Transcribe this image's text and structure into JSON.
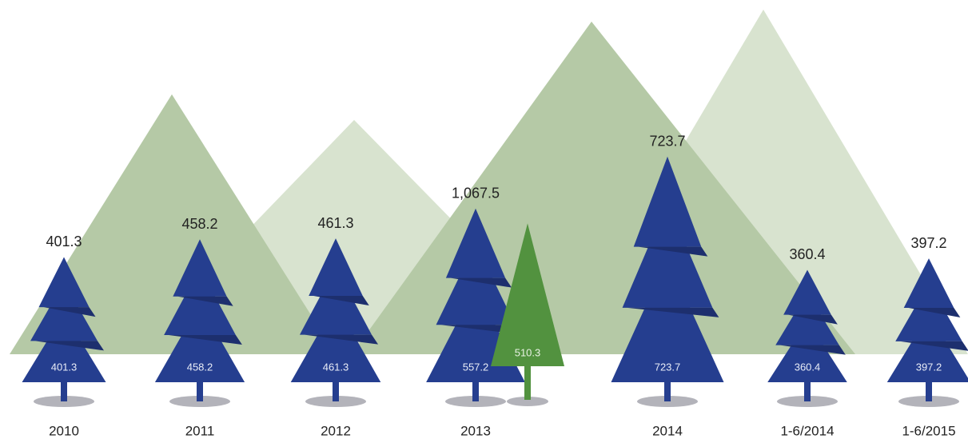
{
  "chart_data": {
    "type": "tree",
    "categories": [
      "2010",
      "2011",
      "2012",
      "2013",
      "2014",
      "1-6/2014",
      "1-6/2015"
    ],
    "series": [
      {
        "color": "#253e8f",
        "values": [
          401.3,
          458.2,
          461.3,
          557.2,
          723.7,
          360.4,
          397.2
        ]
      },
      {
        "color": "#52923f",
        "values": [
          null,
          null,
          null,
          510.3,
          null,
          null,
          null
        ]
      }
    ],
    "totals": [
      401.3,
      458.2,
      461.3,
      {
        "value": 1067.5,
        "label": "1,067.5"
      },
      723.7,
      360.4,
      397.2
    ]
  }
}
